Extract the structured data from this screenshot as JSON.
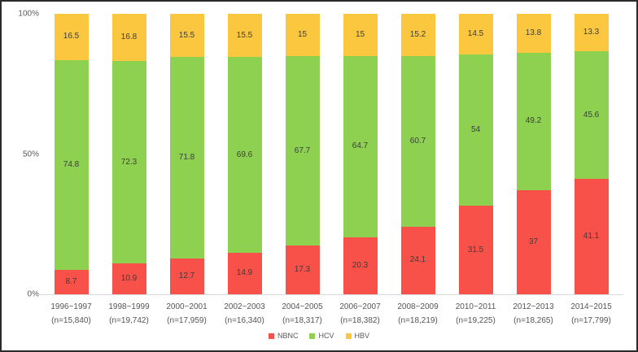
{
  "chart_data": {
    "type": "bar",
    "variant": "stacked-100-percent",
    "orientation": "vertical",
    "title": "",
    "xlabel": "",
    "ylabel": "",
    "grid": false,
    "y_axis": {
      "range": [
        0,
        100
      ],
      "ticks": [
        {
          "label": "100%",
          "value": 100
        },
        {
          "label": "50%",
          "value": 50
        },
        {
          "label": "0%",
          "value": 0
        }
      ]
    },
    "categories": [
      {
        "years": "1996~1997",
        "n": "(n=15,840)"
      },
      {
        "years": "1998~1999",
        "n": "(n=19,742)"
      },
      {
        "years": "2000~2001",
        "n": "(n=17,959)"
      },
      {
        "years": "2002~2003",
        "n": "(n=16,340)"
      },
      {
        "years": "2004~2005",
        "n": "(n=18,317)"
      },
      {
        "years": "2006~2007",
        "n": "(n=18,382)"
      },
      {
        "years": "2008~2009",
        "n": "(n=18,219)"
      },
      {
        "years": "2010~2011",
        "n": "(n=19,225)"
      },
      {
        "years": "2012~2013",
        "n": "(n=18,265)"
      },
      {
        "years": "2014~2015",
        "n": "(n=17,799)"
      }
    ],
    "series": [
      {
        "name": "NBNC",
        "color": "#F8514A",
        "values": [
          8.7,
          10.9,
          12.7,
          14.9,
          17.3,
          20.3,
          24.1,
          31.5,
          37,
          41.1
        ]
      },
      {
        "name": "HCV",
        "color": "#8ED050",
        "values": [
          74.8,
          72.3,
          71.8,
          69.6,
          67.7,
          64.7,
          60.7,
          54,
          49.2,
          45.6
        ]
      },
      {
        "name": "HBV",
        "color": "#FBC73F",
        "values": [
          16.5,
          16.8,
          15.5,
          15.5,
          15,
          15,
          15.2,
          14.5,
          13.8,
          13.3
        ]
      }
    ],
    "legend": {
      "position": "bottom-center",
      "items": [
        "NBNC",
        "HCV",
        "HBV"
      ]
    }
  },
  "styles": {
    "frame_border": "#2b2b2b",
    "background": "#ffffff",
    "axis_line": "#d9d9d9",
    "axis_text": "#595959",
    "category_text": "#555555",
    "data_label_text": "#3d3d3d"
  }
}
